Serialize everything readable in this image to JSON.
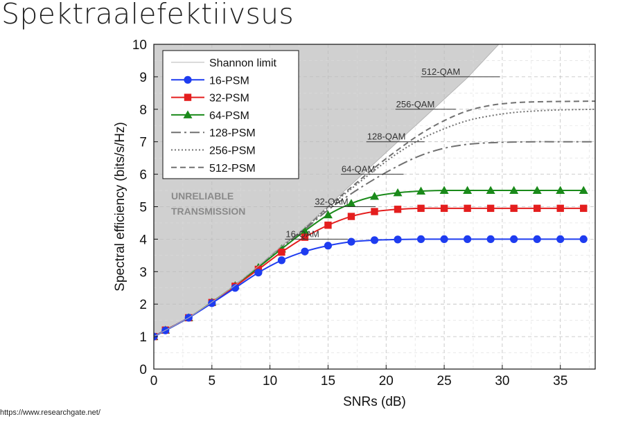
{
  "slide": {
    "title": "Spektraalefektiivsus",
    "source": "https://www.researchgate.net/"
  },
  "colors": {
    "unreliable_region": "#d0d0d0",
    "psm16": "#1e3cf0",
    "psm32": "#e41e1e",
    "psm64": "#1a8a1a",
    "shannon": "#b4b4b4",
    "high_order": "#707070",
    "region_text": "#8a8a8a"
  },
  "chart_data": {
    "type": "line",
    "xlabel": "SNRs (dB)",
    "ylabel": "Spectral efficiency (bits/s/Hz)",
    "xlim": [
      0,
      38
    ],
    "ylim": [
      0,
      10
    ],
    "xticks": [
      0,
      5,
      10,
      15,
      20,
      25,
      30,
      35
    ],
    "yticks": [
      0,
      1,
      2,
      3,
      4,
      5,
      6,
      7,
      8,
      9,
      10
    ],
    "grid": true,
    "legend_position": "top-left",
    "region_label": [
      "UNRELIABLE",
      "TRANSMISSION"
    ],
    "series": [
      {
        "name": "Shannon limit",
        "style": "thin",
        "marker": "none",
        "x": [
          0,
          3,
          5,
          7,
          9,
          11,
          13,
          15,
          17,
          19,
          21,
          23,
          25,
          27,
          29.7
        ],
        "y": [
          1.0,
          1.58,
          2.06,
          2.58,
          3.17,
          3.79,
          4.36,
          5.03,
          5.68,
          6.34,
          7.0,
          7.65,
          8.31,
          8.97,
          10
        ]
      },
      {
        "name": "16-PSM",
        "style": "solid",
        "marker": "circle",
        "color_key": "psm16",
        "x": [
          0,
          1,
          3,
          5,
          7,
          9,
          11,
          13,
          15,
          17,
          19,
          21,
          23,
          25,
          27,
          29,
          31,
          33,
          35,
          37
        ],
        "y": [
          1.0,
          1.19,
          1.58,
          2.03,
          2.5,
          2.97,
          3.35,
          3.62,
          3.8,
          3.92,
          3.97,
          3.99,
          4.0,
          4.0,
          4.0,
          4.0,
          4.0,
          4.0,
          4.0,
          4.0
        ]
      },
      {
        "name": "32-PSM",
        "style": "solid",
        "marker": "square",
        "color_key": "psm32",
        "x": [
          0,
          1,
          3,
          5,
          7,
          9,
          11,
          13,
          15,
          17,
          19,
          21,
          23,
          25,
          27,
          29,
          31,
          33,
          35,
          37
        ],
        "y": [
          1.0,
          1.2,
          1.58,
          2.05,
          2.55,
          3.07,
          3.6,
          4.06,
          4.43,
          4.7,
          4.85,
          4.92,
          4.95,
          4.95,
          4.95,
          4.95,
          4.95,
          4.95,
          4.95,
          4.95
        ]
      },
      {
        "name": "64-PSM",
        "style": "solid",
        "marker": "triangle",
        "color_key": "psm64",
        "x": [
          0,
          1,
          3,
          5,
          7,
          9,
          11,
          13,
          15,
          17,
          19,
          21,
          23,
          25,
          27,
          29,
          31,
          33,
          35,
          37
        ],
        "y": [
          1.0,
          1.2,
          1.58,
          2.06,
          2.57,
          3.13,
          3.7,
          4.25,
          4.75,
          5.1,
          5.32,
          5.43,
          5.48,
          5.5,
          5.5,
          5.5,
          5.5,
          5.5,
          5.5,
          5.5
        ]
      },
      {
        "name": "128-PSM",
        "style": "dashdot",
        "marker": "none",
        "color_key": "high_order",
        "x": [
          0,
          3,
          5,
          7,
          9,
          11,
          13,
          15,
          17,
          19,
          21,
          23,
          25,
          27,
          29,
          31,
          33,
          35,
          38
        ],
        "y": [
          1.0,
          1.58,
          2.06,
          2.57,
          3.15,
          3.75,
          4.3,
          4.9,
          5.4,
          5.85,
          6.25,
          6.58,
          6.8,
          6.92,
          6.97,
          6.99,
          7.0,
          7.0,
          7.0
        ]
      },
      {
        "name": "256-PSM",
        "style": "dotted",
        "marker": "none",
        "color_key": "high_order",
        "x": [
          0,
          3,
          5,
          7,
          9,
          11,
          13,
          15,
          17,
          19,
          21,
          23,
          25,
          27,
          29,
          31,
          33,
          35,
          38
        ],
        "y": [
          1.0,
          1.58,
          2.06,
          2.58,
          3.16,
          3.77,
          4.33,
          4.97,
          5.55,
          6.12,
          6.65,
          7.08,
          7.4,
          7.65,
          7.8,
          7.9,
          7.95,
          7.98,
          8.0
        ]
      },
      {
        "name": "512-PSM",
        "style": "dashed",
        "marker": "none",
        "color_key": "high_order",
        "x": [
          0,
          3,
          5,
          7,
          9,
          11,
          13,
          15,
          17,
          19,
          21,
          23,
          25,
          27,
          29,
          31,
          33,
          35,
          38
        ],
        "y": [
          1.0,
          1.58,
          2.06,
          2.58,
          3.16,
          3.78,
          4.34,
          5.0,
          5.6,
          6.2,
          6.75,
          7.25,
          7.65,
          7.95,
          8.12,
          8.2,
          8.23,
          8.24,
          8.25
        ]
      }
    ],
    "annotations": [
      {
        "text": "16-QAM",
        "y": 4,
        "x_start": 11.3,
        "x_end": 16.7
      },
      {
        "text": "32-QAM",
        "y": 5,
        "x_start": 13.8,
        "x_end": 19.1
      },
      {
        "text": "64-QAM",
        "y": 6,
        "x_start": 16.1,
        "x_end": 21.5
      },
      {
        "text": "128-QAM",
        "y": 7,
        "x_start": 18.3,
        "x_end": 23.3
      },
      {
        "text": "256-QAM",
        "y": 8,
        "x_start": 20.8,
        "x_end": 26.0
      },
      {
        "text": "512-QAM",
        "y": 9,
        "x_start": 23.0,
        "x_end": 29.8
      }
    ]
  }
}
